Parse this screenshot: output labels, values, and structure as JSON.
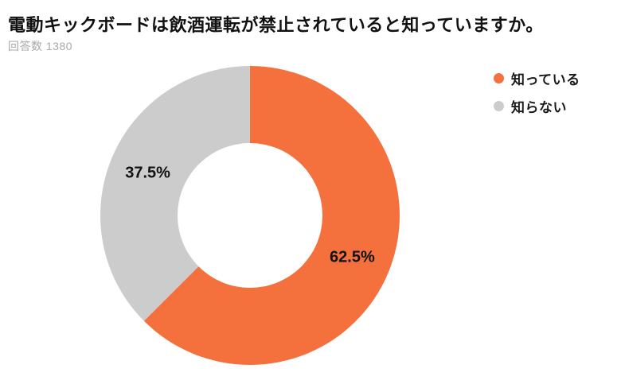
{
  "header": {
    "title": "電動キックボードは飲酒運転が禁止されていると知っていますか。",
    "respondents_label": "回答数",
    "respondents_count": "1380"
  },
  "chart_data": {
    "type": "pie",
    "style": "donut",
    "title": "電動キックボードは飲酒運転が禁止されていると知っていますか。",
    "respondents": 1380,
    "categories": [
      "知っている",
      "知らない"
    ],
    "values": [
      62.5,
      37.5
    ],
    "labels": [
      "62.5%",
      "37.5%"
    ],
    "colors": [
      "#f4713e",
      "#cccccc"
    ],
    "start_angle_deg": 0,
    "direction": "clockwise",
    "inner_radius_ratio": 0.48,
    "legend_position": "top-right"
  },
  "legend": {
    "items": [
      {
        "label": "知っている",
        "color": "#f4713e"
      },
      {
        "label": "知らない",
        "color": "#cccccc"
      }
    ]
  }
}
